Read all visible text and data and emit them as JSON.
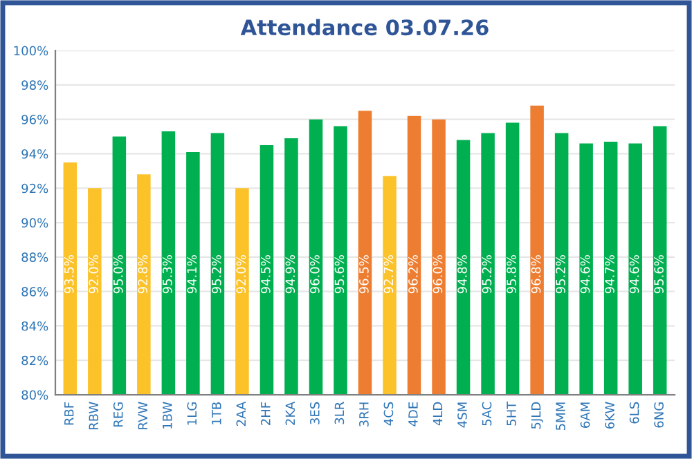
{
  "chart_data": {
    "type": "bar",
    "title": "Attendance 03.07.26",
    "categories": [
      "RBF",
      "RBW",
      "REG",
      "RVW",
      "1BW",
      "1LG",
      "1TB",
      "2AA",
      "2HF",
      "2KA",
      "3ES",
      "3LR",
      "3RH",
      "4CS",
      "4DE",
      "4LD",
      "4SM",
      "5AC",
      "5HT",
      "5JLD",
      "5MM",
      "6AM",
      "6KW",
      "6LS",
      "6NG"
    ],
    "values": [
      93.5,
      92.0,
      95.0,
      92.8,
      95.3,
      94.1,
      95.2,
      92.0,
      94.5,
      94.9,
      96.0,
      95.6,
      96.5,
      92.7,
      96.2,
      96.0,
      94.8,
      95.2,
      95.8,
      96.8,
      95.2,
      94.6,
      94.7,
      94.6,
      95.6
    ],
    "value_labels": [
      "93.5%",
      "92.0%",
      "95.0%",
      "92.8%",
      "95.3%",
      "94.1%",
      "95.2%",
      "92.0%",
      "94.5%",
      "94.9%",
      "96.0%",
      "95.6%",
      "96.5%",
      "92.7%",
      "96.2%",
      "96.0%",
      "94.8%",
      "95.2%",
      "95.8%",
      "96.8%",
      "95.2%",
      "94.6%",
      "94.7%",
      "94.6%",
      "95.6%"
    ],
    "colors": [
      "#fcc22a",
      "#fcc22a",
      "#00b050",
      "#fcc22a",
      "#00b050",
      "#00b050",
      "#00b050",
      "#fcc22a",
      "#00b050",
      "#00b050",
      "#00b050",
      "#00b050",
      "#ed7d31",
      "#fcc22a",
      "#ed7d31",
      "#ed7d31",
      "#00b050",
      "#00b050",
      "#00b050",
      "#ed7d31",
      "#00b050",
      "#00b050",
      "#00b050",
      "#00b050",
      "#00b050"
    ],
    "ylim": [
      80,
      100
    ],
    "yticks": [
      {
        "value": 80,
        "label": "80%"
      },
      {
        "value": 82,
        "label": "82%"
      },
      {
        "value": 84,
        "label": "84%"
      },
      {
        "value": 86,
        "label": "86%"
      },
      {
        "value": 88,
        "label": "88%"
      },
      {
        "value": 90,
        "label": "90%"
      },
      {
        "value": 92,
        "label": "92%"
      },
      {
        "value": 94,
        "label": "94%"
      },
      {
        "value": 96,
        "label": "96%"
      },
      {
        "value": 98,
        "label": "98%"
      },
      {
        "value": 100,
        "label": "100%"
      }
    ],
    "grid": "y"
  }
}
